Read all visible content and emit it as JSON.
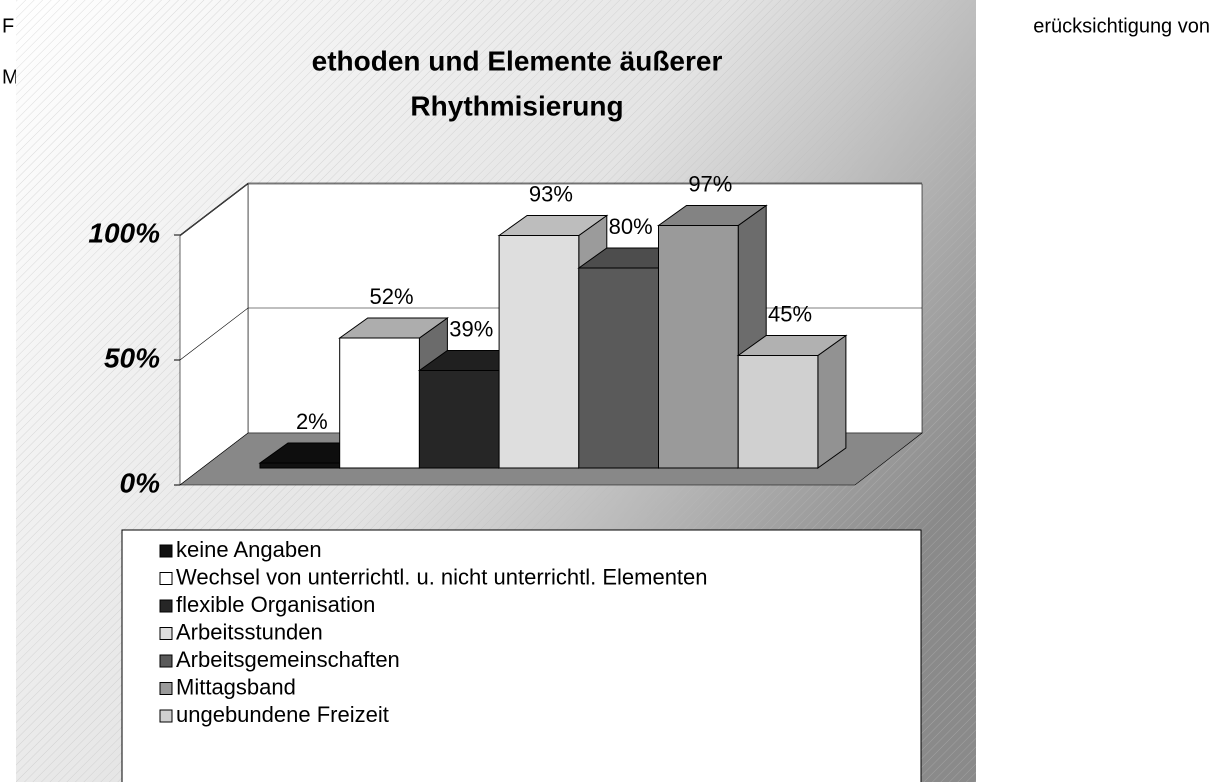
{
  "doc_text": [
    "F",
    "erücksichtigung von",
    "M"
  ],
  "chart_data": {
    "type": "bar3d",
    "title": [
      "ethoden und Elemente äußerer",
      "Rhythmisierung"
    ],
    "categories": [
      "keine Angaben",
      "Wechsel von unterrichtl. u. nicht unterrichtl. Elementen",
      "flexible Organisation",
      "Arbeitsstunden",
      "Arbeitsgemeinschaften",
      "Mittagsband",
      "ungebundene Freizeit"
    ],
    "values": [
      2,
      52,
      39,
      93,
      80,
      97,
      45
    ],
    "value_labels": [
      "2%",
      "52%",
      "39%",
      "93%",
      "80%",
      "97%",
      "45%"
    ],
    "colors": [
      "#111111",
      "#ffffff",
      "#262626",
      "#dedede",
      "#5a5a5a",
      "#9a9a9a",
      "#d0d0d0"
    ],
    "ylim": [
      0,
      100
    ],
    "yticks": [
      {
        "value": 0,
        "label": "0%"
      },
      {
        "value": 50,
        "label": "50%"
      },
      {
        "value": 100,
        "label": "100%"
      }
    ],
    "grid": true,
    "legend": "bottom"
  }
}
